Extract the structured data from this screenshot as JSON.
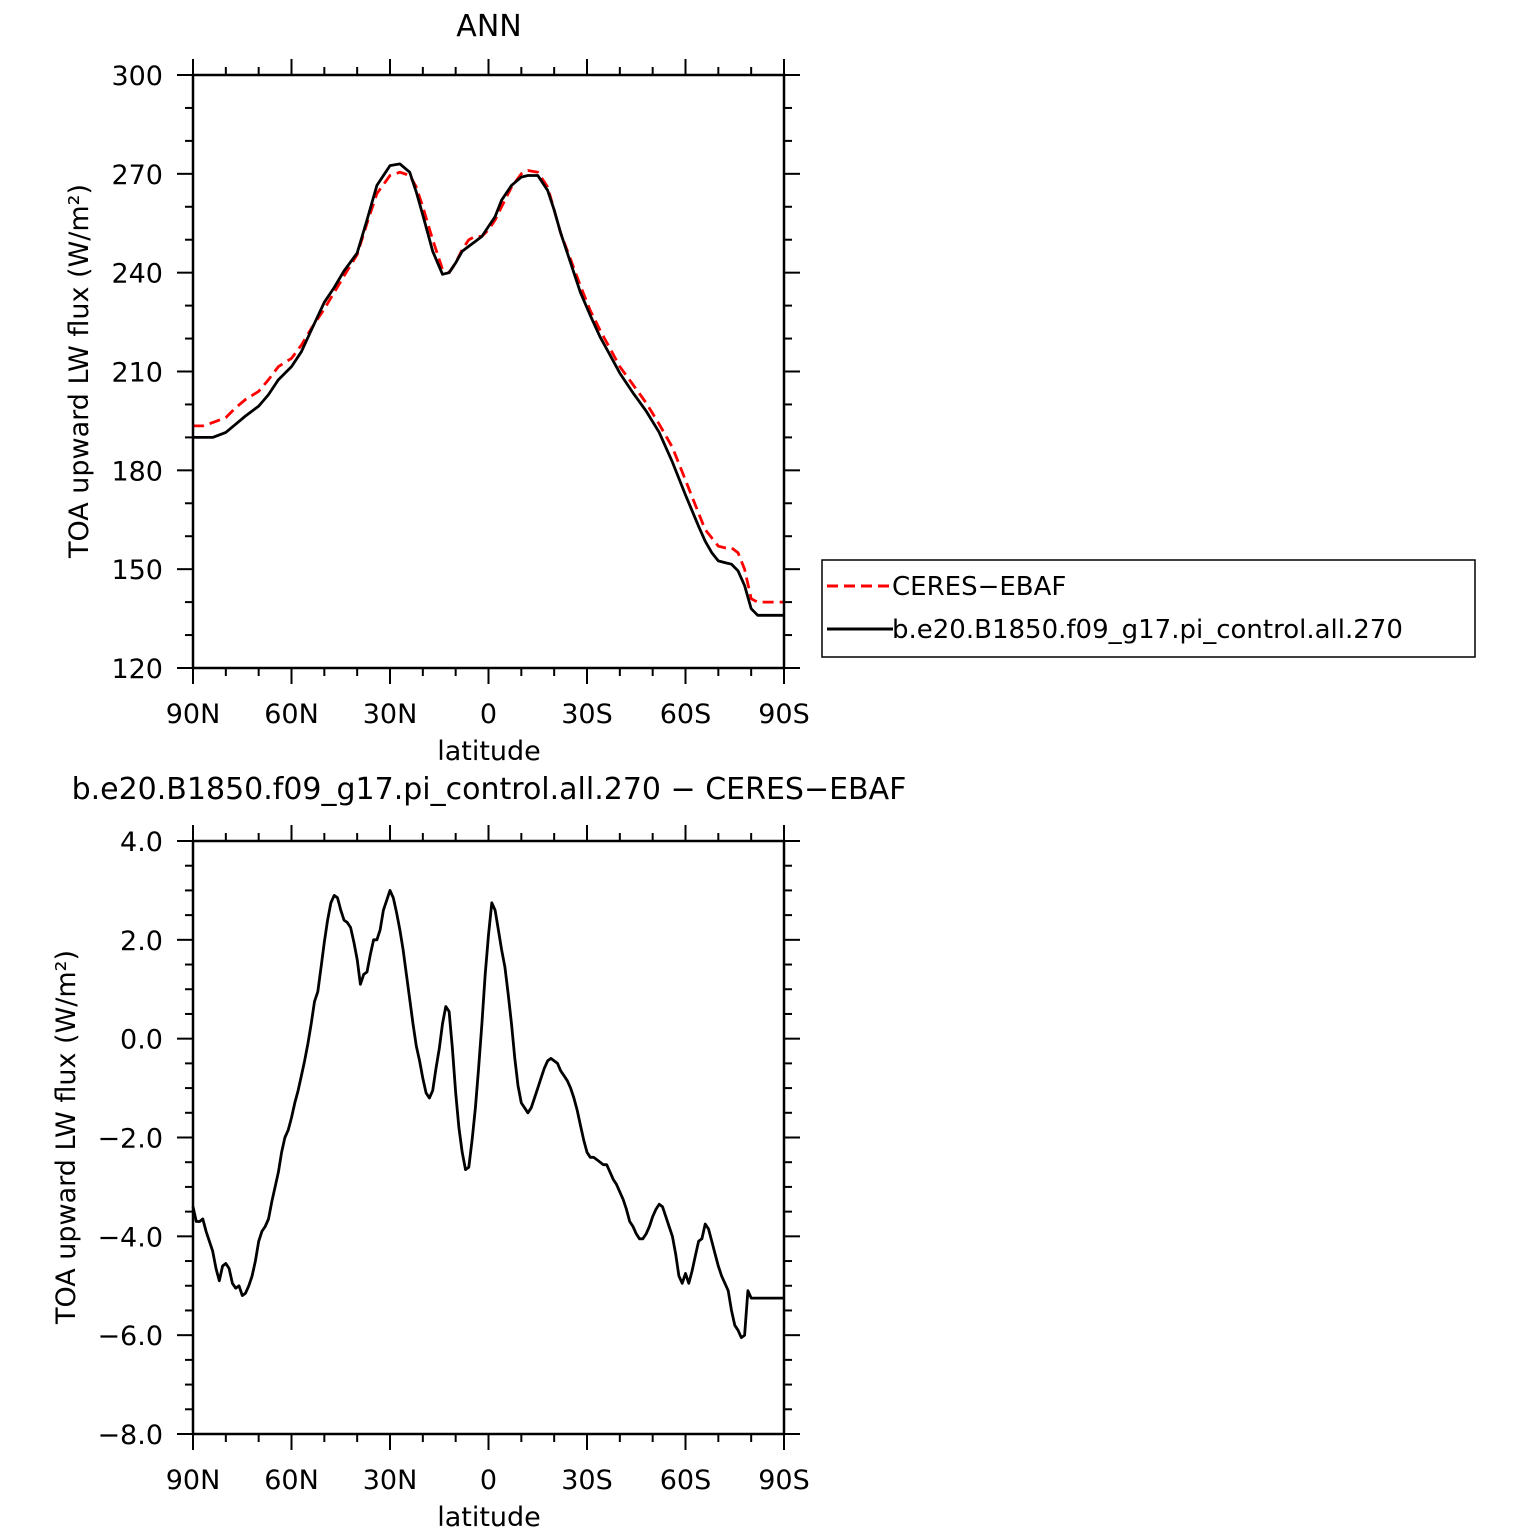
{
  "chart_data": [
    {
      "type": "line",
      "title": "ANN",
      "xlabel": "latitude",
      "ylabel": "TOA upward LW flux (W/m²)",
      "xlim": [
        90,
        -90
      ],
      "ylim": [
        120,
        300
      ],
      "yticks": [
        120,
        150,
        180,
        210,
        240,
        270,
        300
      ],
      "ytick_labels": [
        "120",
        "150",
        "180",
        "210",
        "240",
        "270",
        "300"
      ],
      "xticks": [
        90,
        60,
        30,
        0,
        -30,
        -60,
        -90
      ],
      "xtick_labels": [
        "90N",
        "60N",
        "30N",
        "0",
        "30S",
        "60S",
        "90S"
      ],
      "legend_position": "right",
      "grid": false,
      "series": [
        {
          "name": "CERES−EBAF",
          "color": "#ff0000",
          "dash": "dashed",
          "x": [
            90,
            87,
            84,
            80,
            77,
            74,
            70,
            67,
            64,
            60,
            57,
            54,
            50,
            47,
            44,
            40,
            37,
            34,
            30,
            27,
            24,
            22,
            20,
            17,
            14,
            12,
            10,
            8,
            6,
            4,
            2,
            0,
            -2,
            -4,
            -7,
            -10,
            -12,
            -15,
            -18,
            -20,
            -22,
            -25,
            -28,
            -31,
            -34,
            -37,
            -40,
            -44,
            -48,
            -52,
            -56,
            -60,
            -64,
            -66,
            -68,
            -70,
            -72,
            -74,
            -76,
            -78,
            -80,
            -82,
            -84,
            -86,
            -88,
            -90
          ],
          "y": [
            193.5,
            193.5,
            194.5,
            196,
            199,
            201.5,
            204,
            207.5,
            211.5,
            214,
            218,
            223,
            229,
            234,
            239,
            245.5,
            255,
            264,
            269.5,
            270.5,
            269.5,
            266,
            260,
            250,
            241,
            240,
            243,
            247,
            250,
            251,
            251,
            253,
            256,
            260,
            266,
            270,
            271,
            270.5,
            266,
            259,
            252,
            244,
            236,
            228.5,
            222.5,
            217,
            211.5,
            206,
            200.5,
            194,
            187,
            177,
            167,
            162,
            159.5,
            157,
            156.5,
            156.5,
            155,
            150,
            141,
            140,
            140,
            140,
            140,
            140
          ]
        },
        {
          "name": "b.e20.B1850.f09_g17.pi_control.all.270",
          "color": "#000000",
          "dash": "solid",
          "x": [
            90,
            87,
            84,
            80,
            77,
            74,
            70,
            67,
            64,
            60,
            57,
            54,
            50,
            47,
            44,
            40,
            37,
            34,
            30,
            27,
            24,
            22,
            20,
            17,
            14,
            12,
            10,
            8,
            6,
            4,
            2,
            0,
            -2,
            -4,
            -7,
            -10,
            -12,
            -15,
            -18,
            -20,
            -22,
            -25,
            -28,
            -31,
            -34,
            -37,
            -40,
            -44,
            -48,
            -52,
            -56,
            -60,
            -64,
            -66,
            -68,
            -70,
            -72,
            -74,
            -76,
            -78,
            -80,
            -82,
            -84,
            -86,
            -88,
            -90
          ],
          "y": [
            190,
            190,
            190,
            191.5,
            194,
            196.5,
            199.5,
            203,
            207.5,
            211.5,
            216,
            222.5,
            231,
            235.5,
            240.5,
            246,
            256,
            266.5,
            272.5,
            273,
            270.5,
            264.5,
            257.5,
            246.5,
            239.5,
            240,
            243,
            246.5,
            248,
            249.5,
            251,
            254,
            257,
            262,
            266.5,
            269,
            269.5,
            269.5,
            265,
            259,
            252,
            243,
            234,
            227,
            220.5,
            215,
            209.5,
            203.5,
            198,
            191.5,
            182.5,
            172.5,
            163,
            158.5,
            155,
            152.5,
            152,
            151.5,
            149.5,
            145,
            138,
            136,
            136,
            136,
            136,
            136
          ]
        }
      ]
    },
    {
      "type": "line",
      "title": "b.e20.B1850.f09_g17.pi_control.all.270 − CERES−EBAF",
      "xlabel": "latitude",
      "ylabel": "TOA upward LW flux (W/m²)",
      "xlim": [
        90,
        -90
      ],
      "ylim": [
        -8,
        4
      ],
      "yticks": [
        -8,
        -6,
        -4,
        -2,
        0,
        2,
        4
      ],
      "ytick_labels": [
        "−8.0",
        "−6.0",
        "−4.0",
        "−2.0",
        "0.0",
        "2.0",
        "4.0"
      ],
      "xticks": [
        90,
        60,
        30,
        0,
        -30,
        -60,
        -90
      ],
      "xtick_labels": [
        "90N",
        "60N",
        "30N",
        "0",
        "30S",
        "60S",
        "90S"
      ],
      "grid": false,
      "series": [
        {
          "name": "",
          "color": "#000000",
          "dash": "solid",
          "x": [
            90,
            89,
            88,
            87,
            86,
            85,
            84,
            83,
            82,
            81,
            80,
            79,
            78,
            77,
            76,
            75,
            74,
            73,
            72,
            71,
            70,
            69,
            68,
            67,
            66,
            65,
            64,
            63,
            62,
            61,
            60,
            59,
            58,
            57,
            56,
            55,
            54,
            53,
            52,
            51,
            50,
            49,
            48,
            47,
            46,
            45,
            44,
            43,
            42,
            41,
            40,
            39,
            38,
            37,
            36,
            35,
            34,
            33,
            32,
            31,
            30,
            29,
            28,
            27,
            26,
            25,
            24,
            23,
            22,
            21,
            20,
            19,
            18,
            17,
            16,
            15,
            14,
            13,
            12,
            11,
            10,
            9,
            8,
            7,
            6,
            5,
            4,
            3,
            2,
            1,
            0,
            -1,
            -2,
            -3,
            -4,
            -5,
            -6,
            -7,
            -8,
            -9,
            -10,
            -11,
            -12,
            -13,
            -14,
            -15,
            -16,
            -17,
            -18,
            -19,
            -20,
            -21,
            -22,
            -23,
            -24,
            -25,
            -26,
            -27,
            -28,
            -29,
            -30,
            -31,
            -32,
            -33,
            -34,
            -35,
            -36,
            -37,
            -38,
            -39,
            -40,
            -41,
            -42,
            -43,
            -44,
            -45,
            -46,
            -47,
            -48,
            -49,
            -50,
            -51,
            -52,
            -53,
            -54,
            -55,
            -56,
            -57,
            -58,
            -59,
            -60,
            -61,
            -62,
            -63,
            -64,
            -65,
            -66,
            -67,
            -68,
            -69,
            -70,
            -71,
            -72,
            -73,
            -74,
            -75,
            -76,
            -77,
            -78,
            -79,
            -80,
            -81,
            -82,
            -83,
            -84,
            -85,
            -86,
            -87,
            -88,
            -89,
            -90
          ],
          "y": [
            -3.4,
            -3.7,
            -3.7,
            -3.65,
            -3.9,
            -4.1,
            -4.3,
            -4.65,
            -4.9,
            -4.6,
            -4.55,
            -4.65,
            -4.95,
            -5.05,
            -5.0,
            -5.2,
            -5.15,
            -5.0,
            -4.8,
            -4.5,
            -4.1,
            -3.9,
            -3.8,
            -3.65,
            -3.3,
            -3.0,
            -2.7,
            -2.3,
            -2.0,
            -1.85,
            -1.6,
            -1.3,
            -1.05,
            -0.75,
            -0.45,
            -0.1,
            0.3,
            0.75,
            0.95,
            1.45,
            1.95,
            2.4,
            2.75,
            2.9,
            2.85,
            2.6,
            2.4,
            2.35,
            2.25,
            1.95,
            1.6,
            1.1,
            1.3,
            1.35,
            1.7,
            2.0,
            2.0,
            2.2,
            2.6,
            2.8,
            3.0,
            2.85,
            2.55,
            2.2,
            1.8,
            1.3,
            0.8,
            0.3,
            -0.15,
            -0.45,
            -0.8,
            -1.1,
            -1.2,
            -1.05,
            -0.6,
            -0.2,
            0.3,
            0.65,
            0.55,
            -0.2,
            -1.1,
            -1.8,
            -2.3,
            -2.65,
            -2.6,
            -2.05,
            -1.4,
            -0.6,
            0.3,
            1.3,
            2.1,
            2.75,
            2.6,
            2.2,
            1.8,
            1.45,
            0.9,
            0.3,
            -0.4,
            -0.95,
            -1.3,
            -1.4,
            -1.5,
            -1.4,
            -1.2,
            -1.0,
            -0.8,
            -0.6,
            -0.45,
            -0.4,
            -0.45,
            -0.5,
            -0.65,
            -0.75,
            -0.85,
            -1.0,
            -1.2,
            -1.45,
            -1.75,
            -2.05,
            -2.3,
            -2.4,
            -2.4,
            -2.45,
            -2.5,
            -2.55,
            -2.55,
            -2.7,
            -2.85,
            -2.95,
            -3.1,
            -3.25,
            -3.45,
            -3.7,
            -3.8,
            -3.95,
            -4.05,
            -4.05,
            -3.95,
            -3.8,
            -3.6,
            -3.45,
            -3.35,
            -3.4,
            -3.6,
            -3.8,
            -4.0,
            -4.35,
            -4.8,
            -4.95,
            -4.75,
            -4.95,
            -4.7,
            -4.4,
            -4.1,
            -4.05,
            -3.75,
            -3.85,
            -4.1,
            -4.35,
            -4.6,
            -4.8,
            -4.95,
            -5.1,
            -5.5,
            -5.8,
            -5.9,
            -6.05,
            -6.0,
            -5.1,
            -5.25,
            -5.25,
            -5.25,
            -5.25,
            -5.25,
            -5.25,
            -5.25,
            -5.25,
            -5.25,
            -5.25,
            -5.25
          ]
        }
      ]
    }
  ]
}
